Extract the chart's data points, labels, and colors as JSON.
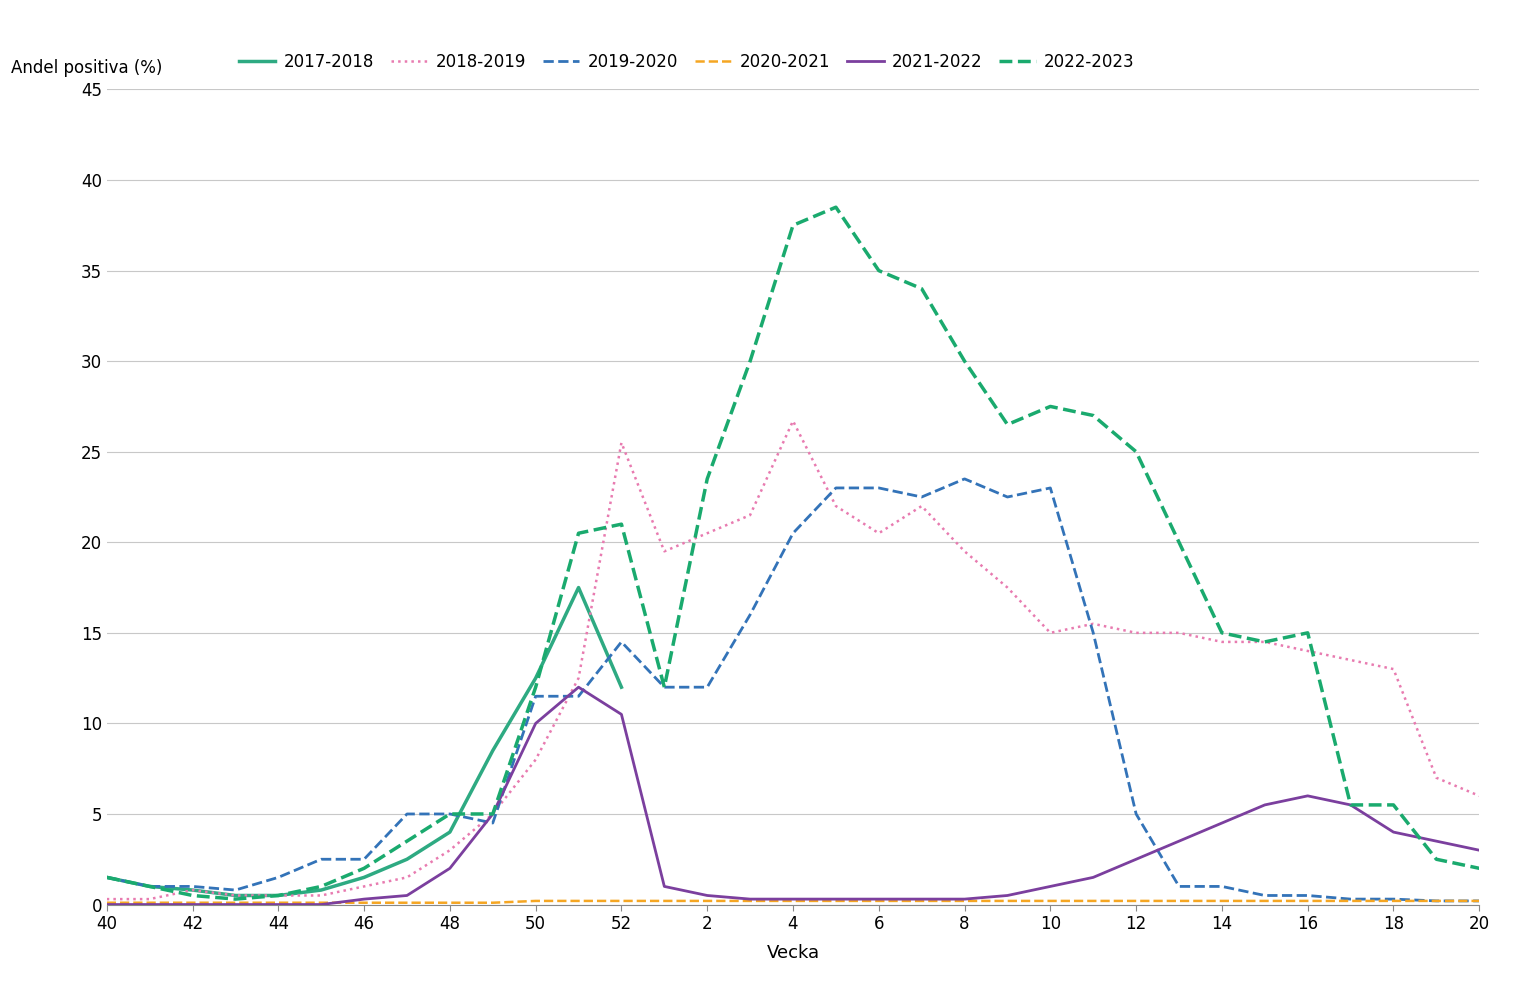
{
  "title": "",
  "ylabel": "Andel positiva (%)",
  "xlabel": "Vecka",
  "ylim": [
    0,
    45
  ],
  "yticks": [
    0,
    5,
    10,
    15,
    20,
    25,
    30,
    35,
    40,
    45
  ],
  "xtick_labels": [
    "40",
    "42",
    "44",
    "46",
    "48",
    "50",
    "52",
    "2",
    "4",
    "6",
    "8",
    "10",
    "12",
    "14",
    "16",
    "18",
    "20"
  ],
  "xtick_weeks": [
    40,
    42,
    44,
    46,
    48,
    50,
    52,
    2,
    4,
    6,
    8,
    10,
    12,
    14,
    16,
    18,
    20
  ],
  "background_color": "#ffffff",
  "grid_color": "#c8c8c8",
  "series": [
    {
      "label": "2017-2018",
      "color": "#2eaa82",
      "linestyle": "solid",
      "linewidth": 2.5,
      "x": [
        40,
        41,
        42,
        43,
        44,
        45,
        46,
        47,
        48,
        49,
        50,
        51,
        52
      ],
      "y": [
        1.5,
        1.0,
        0.8,
        0.5,
        0.5,
        0.8,
        1.5,
        2.5,
        4.0,
        8.5,
        12.5,
        17.5,
        12.0
      ]
    },
    {
      "label": "2018-2019",
      "color": "#e87bb0",
      "linestyle": "dotted",
      "linewidth": 1.8,
      "x": [
        40,
        41,
        42,
        43,
        44,
        45,
        46,
        47,
        48,
        49,
        50,
        51,
        52,
        1,
        2,
        3,
        4,
        5,
        6,
        7,
        8,
        9,
        10,
        11,
        12,
        13,
        14,
        15,
        16,
        17,
        18,
        19,
        20
      ],
      "y": [
        0.3,
        0.3,
        0.8,
        0.5,
        0.5,
        0.5,
        1.0,
        1.5,
        3.0,
        5.0,
        8.0,
        12.5,
        25.5,
        19.5,
        20.5,
        21.5,
        26.7,
        22.0,
        20.5,
        22.0,
        19.5,
        17.5,
        15.0,
        15.5,
        15.0,
        15.0,
        14.5,
        14.5,
        14.0,
        13.5,
        13.0,
        7.0,
        6.0
      ]
    },
    {
      "label": "2019-2020",
      "color": "#3373b8",
      "linestyle": "dashed",
      "linewidth": 2.0,
      "x": [
        40,
        41,
        42,
        43,
        44,
        45,
        46,
        47,
        48,
        49,
        50,
        51,
        52,
        1,
        2,
        3,
        4,
        5,
        6,
        7,
        8,
        9,
        10,
        11,
        12,
        13,
        14,
        15,
        16,
        17,
        18,
        19,
        20
      ],
      "y": [
        1.5,
        1.0,
        1.0,
        0.8,
        1.5,
        2.5,
        2.5,
        5.0,
        5.0,
        4.5,
        11.5,
        11.5,
        14.5,
        12.0,
        12.0,
        16.0,
        20.5,
        23.0,
        23.0,
        22.5,
        23.5,
        22.5,
        23.0,
        15.0,
        5.0,
        1.0,
        1.0,
        0.5,
        0.5,
        0.3,
        0.3,
        0.2,
        0.2
      ]
    },
    {
      "label": "2020-2021",
      "color": "#f5a623",
      "linestyle": "dashed",
      "linewidth": 1.8,
      "x": [
        40,
        41,
        42,
        43,
        44,
        45,
        46,
        47,
        48,
        49,
        50,
        51,
        52,
        1,
        2,
        3,
        4,
        5,
        6,
        7,
        8,
        9,
        10,
        11,
        12,
        13,
        14,
        15,
        16,
        17,
        18,
        19,
        20
      ],
      "y": [
        0.1,
        0.1,
        0.1,
        0.1,
        0.1,
        0.1,
        0.1,
        0.1,
        0.1,
        0.1,
        0.2,
        0.2,
        0.2,
        0.2,
        0.2,
        0.2,
        0.2,
        0.2,
        0.2,
        0.2,
        0.2,
        0.2,
        0.2,
        0.2,
        0.2,
        0.2,
        0.2,
        0.2,
        0.2,
        0.2,
        0.2,
        0.2,
        0.2
      ]
    },
    {
      "label": "2021-2022",
      "color": "#7b3f9e",
      "linestyle": "solid",
      "linewidth": 2.0,
      "x": [
        40,
        41,
        42,
        43,
        44,
        45,
        46,
        47,
        48,
        49,
        50,
        51,
        52,
        1,
        2,
        3,
        4,
        5,
        6,
        7,
        8,
        9,
        10,
        11,
        12,
        13,
        14,
        15,
        16,
        17,
        18,
        19,
        20
      ],
      "y": [
        0.0,
        0.0,
        0.0,
        0.0,
        0.0,
        0.0,
        0.3,
        0.5,
        2.0,
        5.0,
        10.0,
        12.0,
        10.5,
        1.0,
        0.5,
        0.3,
        0.3,
        0.3,
        0.3,
        0.3,
        0.3,
        0.5,
        1.0,
        1.5,
        2.5,
        3.5,
        4.5,
        5.5,
        6.0,
        5.5,
        4.0,
        3.5,
        3.0
      ]
    },
    {
      "label": "2022-2023",
      "color": "#1aaa6e",
      "linestyle": "dashed",
      "linewidth": 2.5,
      "x": [
        40,
        41,
        42,
        43,
        44,
        45,
        46,
        47,
        48,
        49,
        50,
        51,
        52,
        1,
        2,
        3,
        4,
        5,
        6,
        7,
        8,
        9,
        10,
        11,
        12,
        13,
        14,
        15,
        16,
        17,
        18,
        19,
        20
      ],
      "y": [
        1.5,
        1.0,
        0.5,
        0.3,
        0.5,
        1.0,
        2.0,
        3.5,
        5.0,
        5.0,
        12.0,
        20.5,
        21.0,
        12.0,
        23.5,
        30.0,
        37.5,
        38.5,
        35.0,
        34.0,
        30.0,
        26.5,
        27.5,
        27.0,
        25.0,
        20.0,
        15.0,
        14.5,
        15.0,
        5.5,
        5.5,
        2.5,
        2.0
      ]
    }
  ]
}
